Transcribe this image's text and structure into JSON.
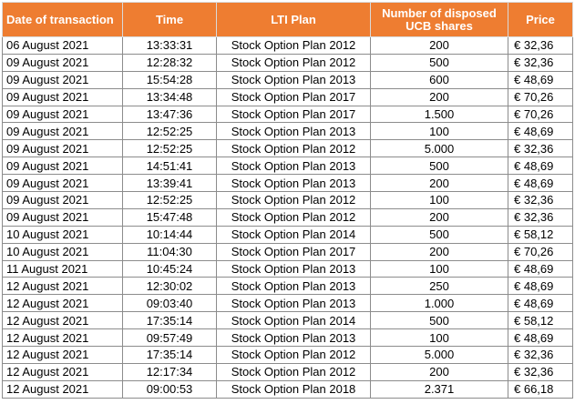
{
  "table": {
    "headers": [
      "Date of transaction",
      "Time",
      "LTI Plan",
      "Number of disposed UCB shares",
      "Price"
    ],
    "rows": [
      [
        "06 August 2021",
        "13:33:31",
        "Stock Option Plan 2012",
        "200",
        "€ 32,36"
      ],
      [
        "09 August 2021",
        "12:28:32",
        "Stock Option Plan 2012",
        "500",
        "€ 32,36"
      ],
      [
        "09 August 2021",
        "15:54:28",
        "Stock Option Plan 2013",
        "600",
        "€ 48,69"
      ],
      [
        "09 August 2021",
        "13:34:48",
        "Stock Option Plan 2017",
        "200",
        "€ 70,26"
      ],
      [
        "09 August 2021",
        "13:47:36",
        "Stock Option Plan 2017",
        "1.500",
        "€ 70,26"
      ],
      [
        "09 August 2021",
        "12:52:25",
        "Stock Option Plan 2013",
        "100",
        "€ 48,69"
      ],
      [
        "09 August 2021",
        "12:52:25",
        "Stock Option Plan 2012",
        "5.000",
        "€ 32,36"
      ],
      [
        "09 August 2021",
        "14:51:41",
        "Stock Option Plan 2013",
        "500",
        "€ 48,69"
      ],
      [
        "09 August 2021",
        "13:39:41",
        "Stock Option Plan 2013",
        "200",
        "€ 48,69"
      ],
      [
        "09 August 2021",
        "12:52:25",
        "Stock Option Plan 2012",
        "100",
        "€ 32,36"
      ],
      [
        "09 August 2021",
        "15:47:48",
        "Stock Option Plan 2012",
        "200",
        "€ 32,36"
      ],
      [
        "10 August 2021",
        "10:14:44",
        "Stock Option Plan 2014",
        "500",
        "€ 58,12"
      ],
      [
        "10 August 2021",
        "11:04:30",
        "Stock Option Plan 2017",
        "200",
        "€ 70,26"
      ],
      [
        "11 August 2021",
        "10:45:24",
        "Stock Option Plan 2013",
        "100",
        "€ 48,69"
      ],
      [
        "12 August 2021",
        "12:30:02",
        "Stock Option Plan 2013",
        "250",
        "€ 48,69"
      ],
      [
        "12 August 2021",
        "09:03:40",
        "Stock Option Plan 2013",
        "1.000",
        "€ 48,69"
      ],
      [
        "12 August 2021",
        "17:35:14",
        "Stock Option Plan 2014",
        "500",
        "€ 58,12"
      ],
      [
        "12 August 2021",
        "09:57:49",
        "Stock Option Plan 2013",
        "100",
        "€ 48,69"
      ],
      [
        "12 August 2021",
        "17:35:14",
        "Stock Option Plan 2012",
        "5.000",
        "€ 32,36"
      ],
      [
        "12 August 2021",
        "12:17:34",
        "Stock Option Plan 2012",
        "200",
        "€ 32,36"
      ],
      [
        "12 August 2021",
        "09:00:53",
        "Stock Option Plan 2018",
        "2.371",
        "€ 66,18"
      ]
    ]
  },
  "colors": {
    "header_background": "#ee7d31",
    "header_text": "#ffffff",
    "grid": "#8c8c8c"
  }
}
